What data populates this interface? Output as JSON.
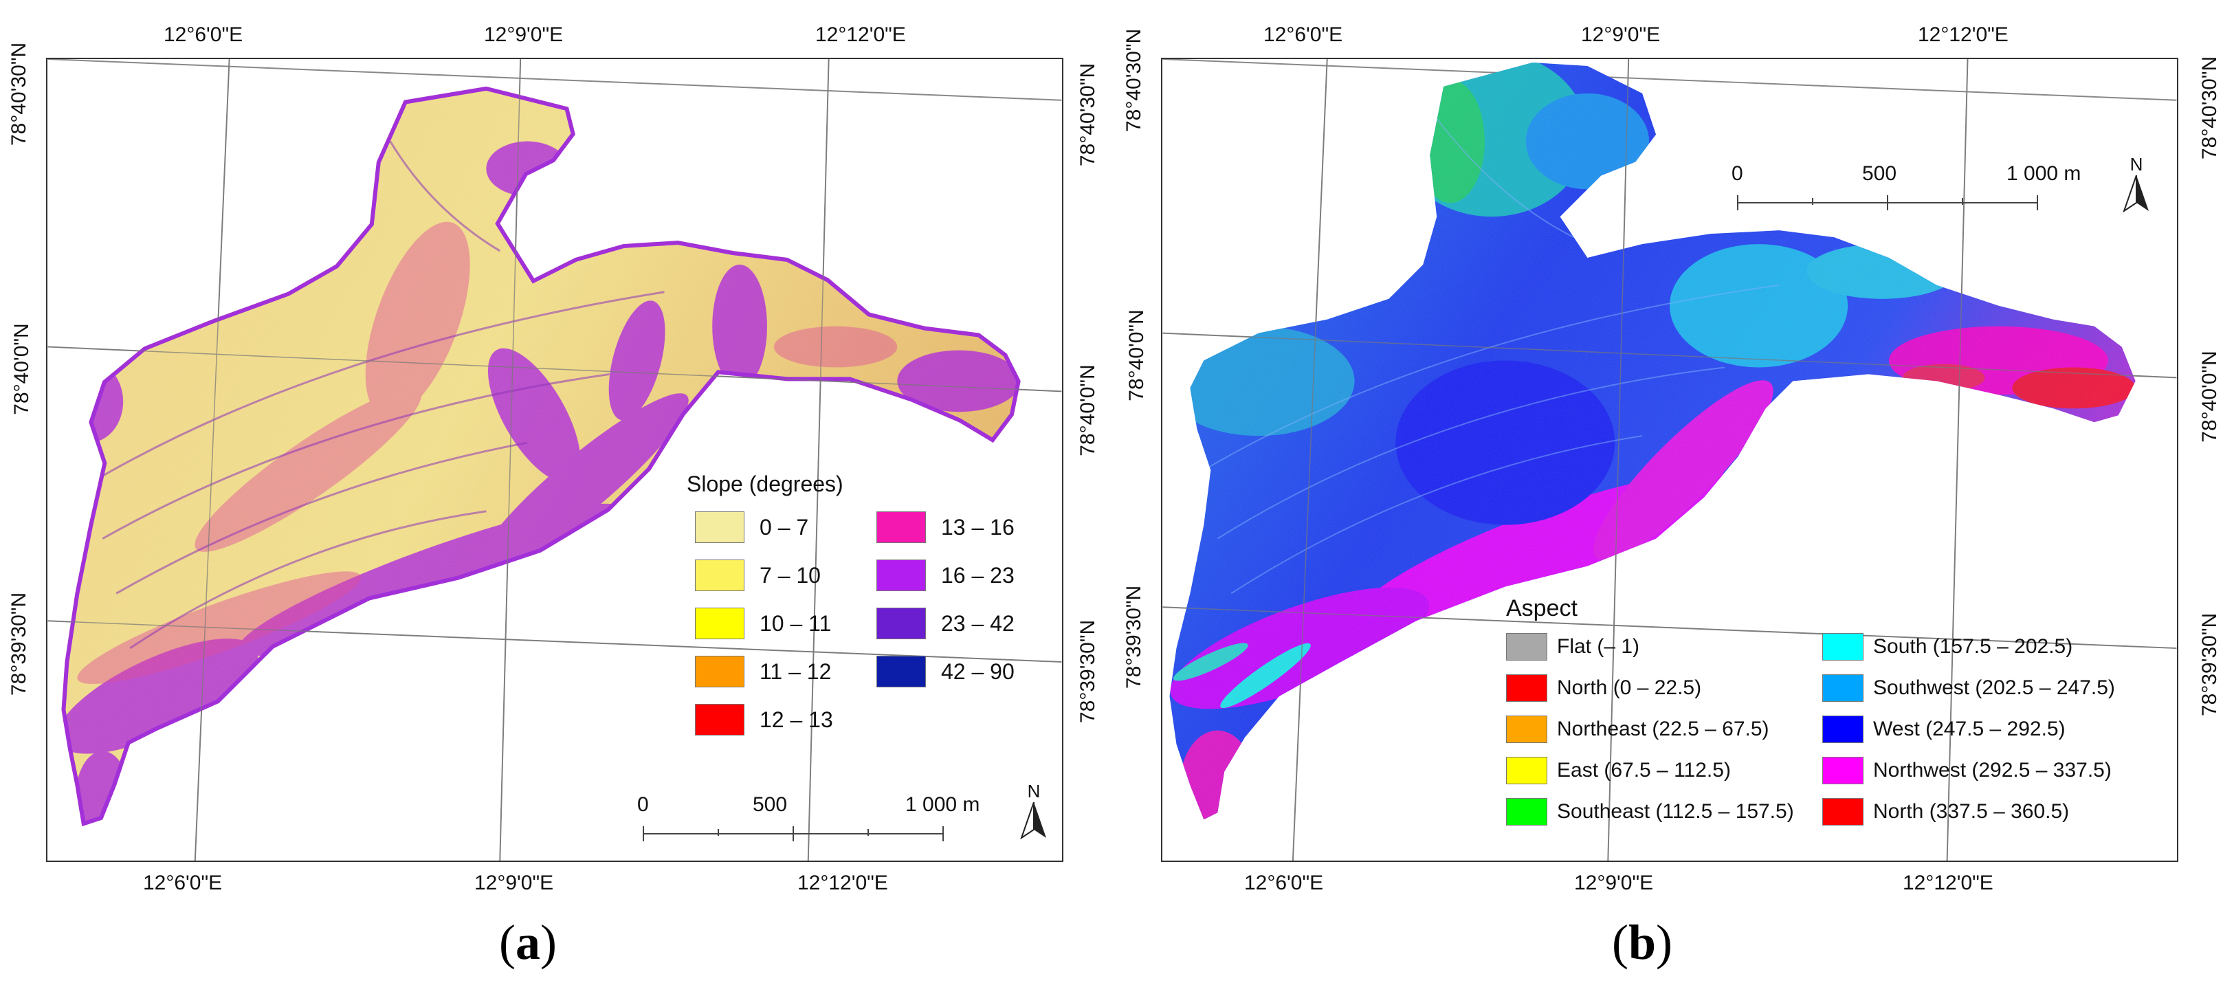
{
  "panel_a": {
    "label": "a",
    "coords": {
      "top": [
        "12°6'0\"E",
        "12°9'0\"E",
        "12°12'0\"E"
      ],
      "bottom": [
        "12°6'0\"E",
        "12°9'0\"E",
        "12°12'0\"E"
      ],
      "left": [
        "78°40'30\"N",
        "78°40'0\"N",
        "78°39'30\"N"
      ],
      "right": [
        "78°40'30\"N",
        "78°40'0\"N",
        "78°39'30\"N"
      ]
    },
    "legend": {
      "title": "Slope (degrees)",
      "items": [
        {
          "label": "0 – 7",
          "color": "#f4ec9e"
        },
        {
          "label": "7 – 10",
          "color": "#fcf25c"
        },
        {
          "label": "10 – 11",
          "color": "#ffff00"
        },
        {
          "label": "11 – 12",
          "color": "#ff9900"
        },
        {
          "label": "12 – 13",
          "color": "#ff0000"
        },
        {
          "label": "13 – 16",
          "color": "#f518b0"
        },
        {
          "label": "16 – 23",
          "color": "#b31ef0"
        },
        {
          "label": "23 – 42",
          "color": "#6a1ed0"
        },
        {
          "label": "42 – 90",
          "color": "#0c1ea8"
        }
      ]
    },
    "scale": {
      "labels": [
        "0",
        "500",
        "1 000 m"
      ]
    },
    "north_label": "N"
  },
  "panel_b": {
    "label": "b",
    "coords": {
      "top": [
        "12°6'0\"E",
        "12°9'0\"E",
        "12°12'0\"E"
      ],
      "bottom": [
        "12°6'0\"E",
        "12°9'0\"E",
        "12°12'0\"E"
      ],
      "left": [
        "78°40'30\"N",
        "78°40'0\"N",
        "78°39'30\"N"
      ],
      "right": [
        "78°40'30\"N",
        "78°40'0\"N",
        "78°39'30\"N"
      ]
    },
    "legend": {
      "title": "Aspect",
      "items": [
        {
          "label": "Flat (– 1)",
          "color": "#a8a8a8"
        },
        {
          "label": "North (0 – 22.5)",
          "color": "#ff0000"
        },
        {
          "label": "Northeast (22.5 – 67.5)",
          "color": "#ffa500"
        },
        {
          "label": "East (67.5 – 112.5)",
          "color": "#ffff00"
        },
        {
          "label": "Southeast (112.5 – 157.5)",
          "color": "#00ff00"
        },
        {
          "label": "South (157.5 – 202.5)",
          "color": "#00ffff"
        },
        {
          "label": "Southwest (202.5 – 247.5)",
          "color": "#00a5ff"
        },
        {
          "label": "West (247.5 – 292.5)",
          "color": "#0000ff"
        },
        {
          "label": "Northwest (292.5 – 337.5)",
          "color": "#ff00ff"
        },
        {
          "label": "North (337.5 – 360.5)",
          "color": "#ff0000"
        }
      ]
    },
    "scale": {
      "labels": [
        "0",
        "500",
        "1 000 m"
      ]
    },
    "north_label": "N"
  }
}
